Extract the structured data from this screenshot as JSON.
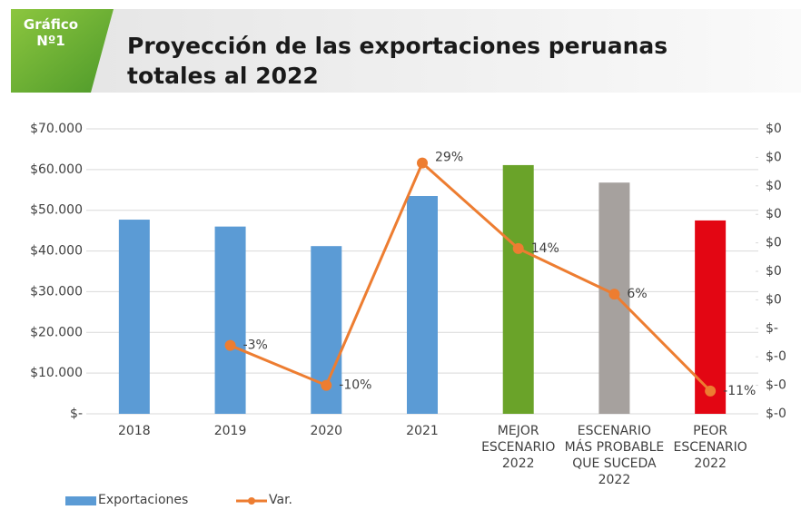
{
  "header": {
    "badge": "Gráfico Nº1"
  },
  "chart_data": {
    "type": "bar",
    "title": "Proyección de las exportaciones peruanas totales al 2022",
    "categories": [
      "2018",
      "2019",
      "2020",
      "2021",
      "MEJOR ESCENARIO 2022",
      "ESCENARIO MÁS PROBABLE QUE SUCEDA 2022",
      "PEOR ESCENARIO 2022"
    ],
    "series": [
      {
        "name": "Exportaciones",
        "color": "#5b9bd5",
        "colors": [
          "#5b9bd5",
          "#5b9bd5",
          "#5b9bd5",
          "#5b9bd5",
          "#6aa329",
          "#a6a19e",
          "#e30613"
        ],
        "values": [
          47700,
          46000,
          41200,
          53500,
          61100,
          56800,
          47500
        ]
      },
      {
        "name": "Var.",
        "type": "line",
        "axis": "y2",
        "color": "#ed7d31",
        "values": [
          null,
          -0.03,
          -0.1,
          0.29,
          0.14,
          0.06,
          -0.11
        ],
        "value_labels": [
          null,
          "-3%",
          "-10%",
          "29%",
          "14%",
          "6%",
          "-11%"
        ]
      }
    ],
    "ylim": [
      0,
      70000
    ],
    "yticks": [
      {
        "value": 0,
        "label": "$-"
      },
      {
        "value": 10000,
        "label": "$10.000"
      },
      {
        "value": 20000,
        "label": "$20.000"
      },
      {
        "value": 30000,
        "label": "$30.000"
      },
      {
        "value": 40000,
        "label": "$40.000"
      },
      {
        "value": 50000,
        "label": "$50.000"
      },
      {
        "value": 60000,
        "label": "$60.000"
      },
      {
        "value": 70000,
        "label": "$70.000"
      }
    ],
    "y2lim": [
      -0.15,
      0.35
    ],
    "y2ticks": [
      {
        "value": -0.15,
        "label": "$-0"
      },
      {
        "value": -0.1,
        "label": "$-0"
      },
      {
        "value": -0.05,
        "label": "$-0"
      },
      {
        "value": 0,
        "label": "$-"
      },
      {
        "value": 0.05,
        "label": "$0"
      },
      {
        "value": 0.1,
        "label": "$0"
      },
      {
        "value": 0.15,
        "label": "$0"
      },
      {
        "value": 0.2,
        "label": "$0"
      },
      {
        "value": 0.25,
        "label": "$0"
      },
      {
        "value": 0.3,
        "label": "$0"
      },
      {
        "value": 0.35,
        "label": "$0"
      }
    ],
    "grid": true,
    "legend": "bottom-left"
  }
}
